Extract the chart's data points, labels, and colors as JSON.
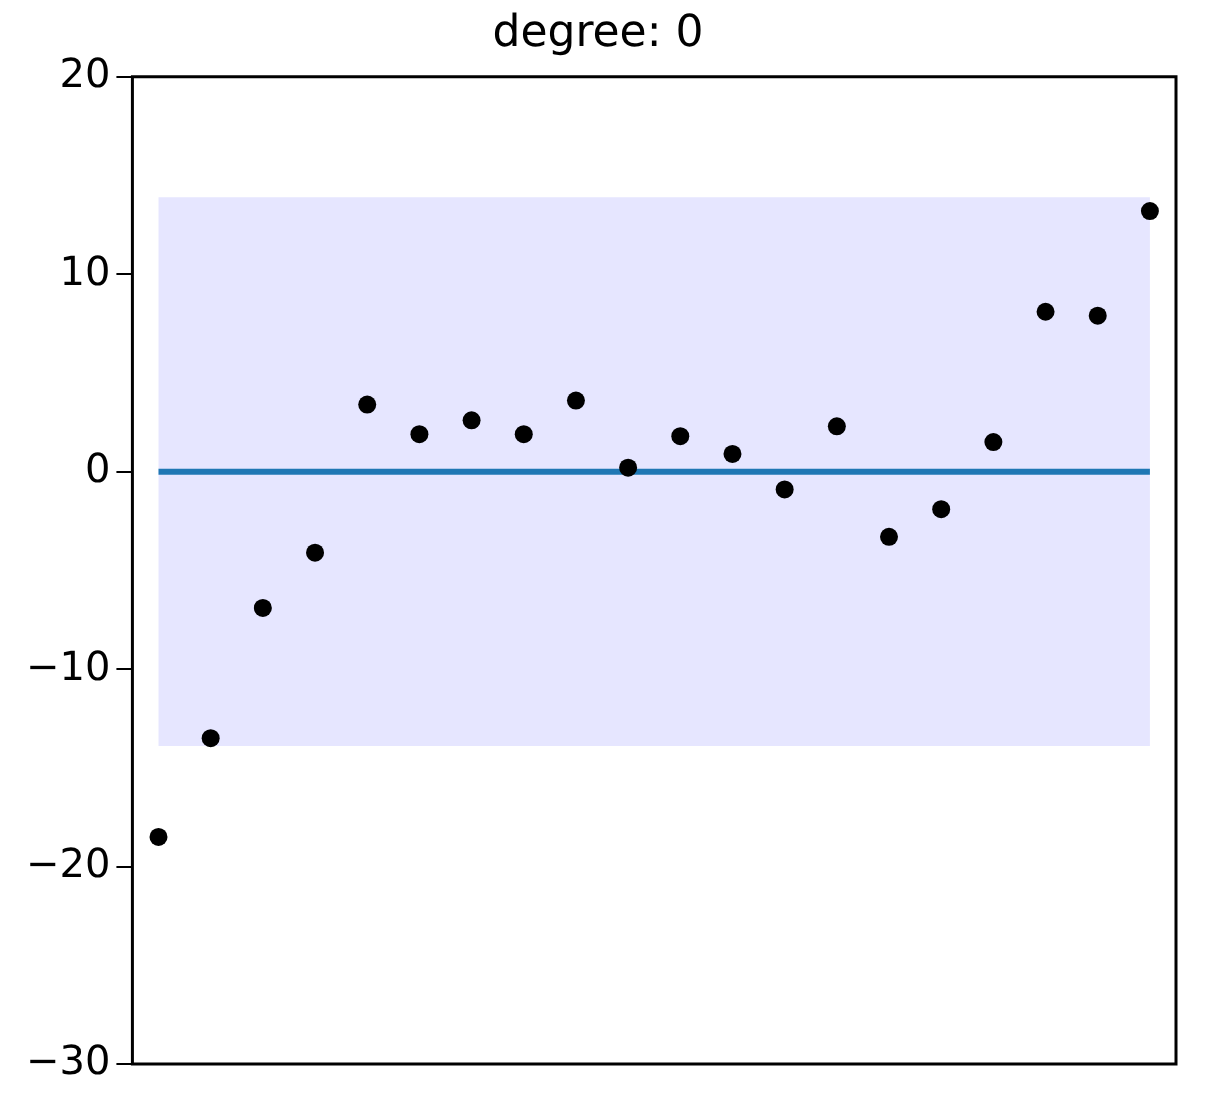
{
  "chart_data": {
    "type": "scatter",
    "title": "degree: 0",
    "categories": [
      null,
      null,
      null,
      null,
      null,
      null,
      null,
      null,
      null,
      null,
      null,
      null,
      null,
      null,
      null,
      null,
      null,
      null,
      null,
      null
    ],
    "series": [
      {
        "color": "#000000",
        "marker": "circle",
        "values": [
          -18.5,
          -13.5,
          -6.9,
          -4.1,
          3.4,
          1.9,
          2.6,
          1.9,
          3.6,
          0.2,
          1.8,
          0.9,
          -0.9,
          2.3,
          -3.3,
          -1.9,
          1.5,
          8.1,
          7.9,
          13.2
        ]
      },
      {
        "type": "line",
        "marker": "none",
        "color": "#1f77b4",
        "values": [
          0,
          0,
          0,
          0,
          0,
          0,
          0,
          0,
          0,
          0,
          0,
          0,
          0,
          0,
          0,
          0,
          0,
          0,
          0,
          0
        ],
        "lower": [
          -13.9,
          -13.9,
          -13.9,
          -13.9,
          -13.9,
          -13.9,
          -13.9,
          -13.9,
          -13.9,
          -13.9,
          -13.9,
          -13.9,
          -13.9,
          -13.9,
          -13.9,
          -13.9,
          -13.9,
          -13.9,
          -13.9,
          -13.9
        ],
        "upper": [
          13.9,
          13.9,
          13.9,
          13.9,
          13.9,
          13.9,
          13.9,
          13.9,
          13.9,
          13.9,
          13.9,
          13.9,
          13.9,
          13.9,
          13.9,
          13.9,
          13.9,
          13.9,
          13.9,
          13.9
        ]
      }
    ],
    "ylim": [
      -30,
      20
    ],
    "yticks": [
      -30,
      -20,
      -10,
      0,
      10,
      20
    ],
    "tick_labels": "y",
    "grid": false,
    "legend": false
  }
}
